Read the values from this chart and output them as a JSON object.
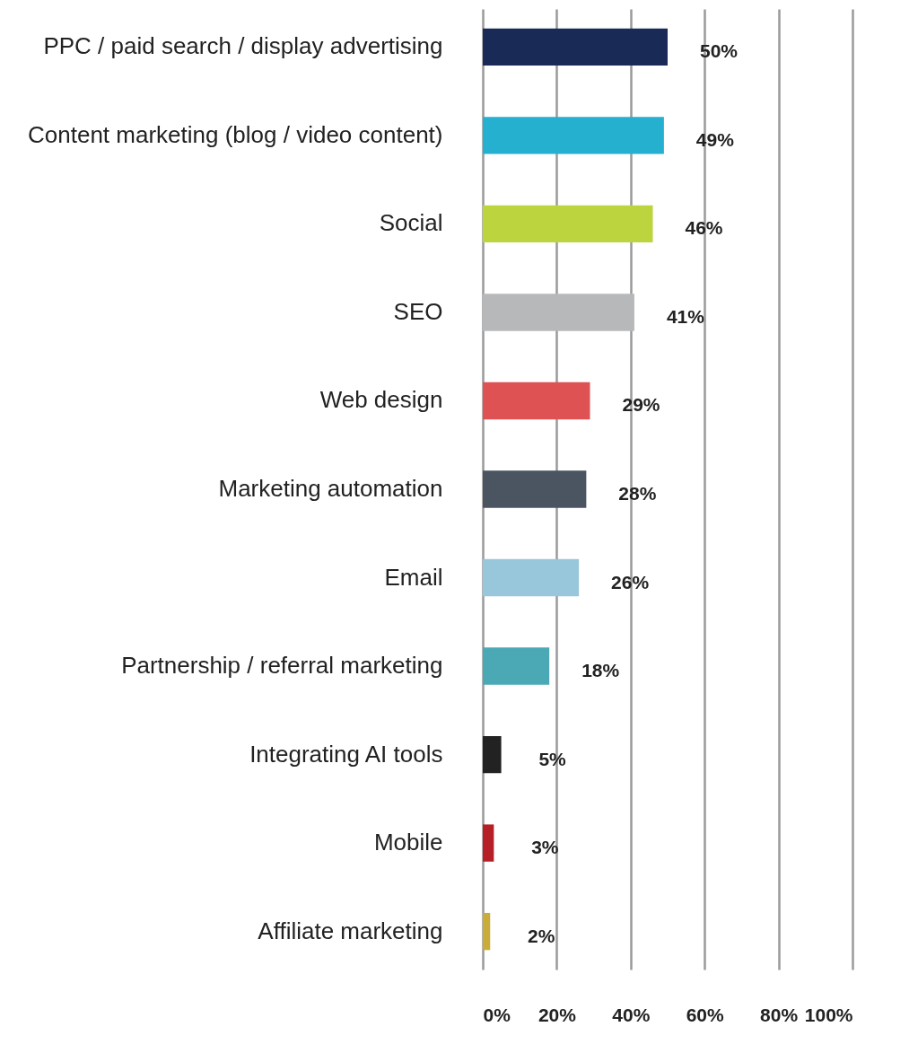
{
  "chart_data": {
    "type": "bar",
    "orientation": "horizontal",
    "categories": [
      "PPC / paid search / display advertising",
      "Content marketing (blog / video content)",
      "Social",
      "SEO",
      "Web design",
      "Marketing automation",
      "Email",
      "Partnership / referral marketing",
      "Integrating AI tools",
      "Mobile",
      "Affiliate marketing"
    ],
    "values": [
      50,
      49,
      46,
      41,
      29,
      28,
      26,
      18,
      5,
      3,
      2
    ],
    "colors": [
      "#1a2a57",
      "#25b0cf",
      "#bcd53e",
      "#b7b8ba",
      "#de5253",
      "#4a5561",
      "#98c6da",
      "#4aa9b5",
      "#222222",
      "#b51f25",
      "#c9ac3a"
    ],
    "value_labels": [
      "50%",
      "49%",
      "46%",
      "41%",
      "29%",
      "28%",
      "26%",
      "18%",
      "5%",
      "3%",
      "2%"
    ],
    "xlim": [
      0,
      100
    ],
    "xticks": [
      {
        "value": 0,
        "label": "0%"
      },
      {
        "value": 20,
        "label": "20%"
      },
      {
        "value": 40,
        "label": "40%"
      },
      {
        "value": 60,
        "label": "60%"
      },
      {
        "value": 80,
        "label": "80%"
      },
      {
        "value": 100,
        "label": "100%"
      }
    ],
    "grid": "x"
  }
}
